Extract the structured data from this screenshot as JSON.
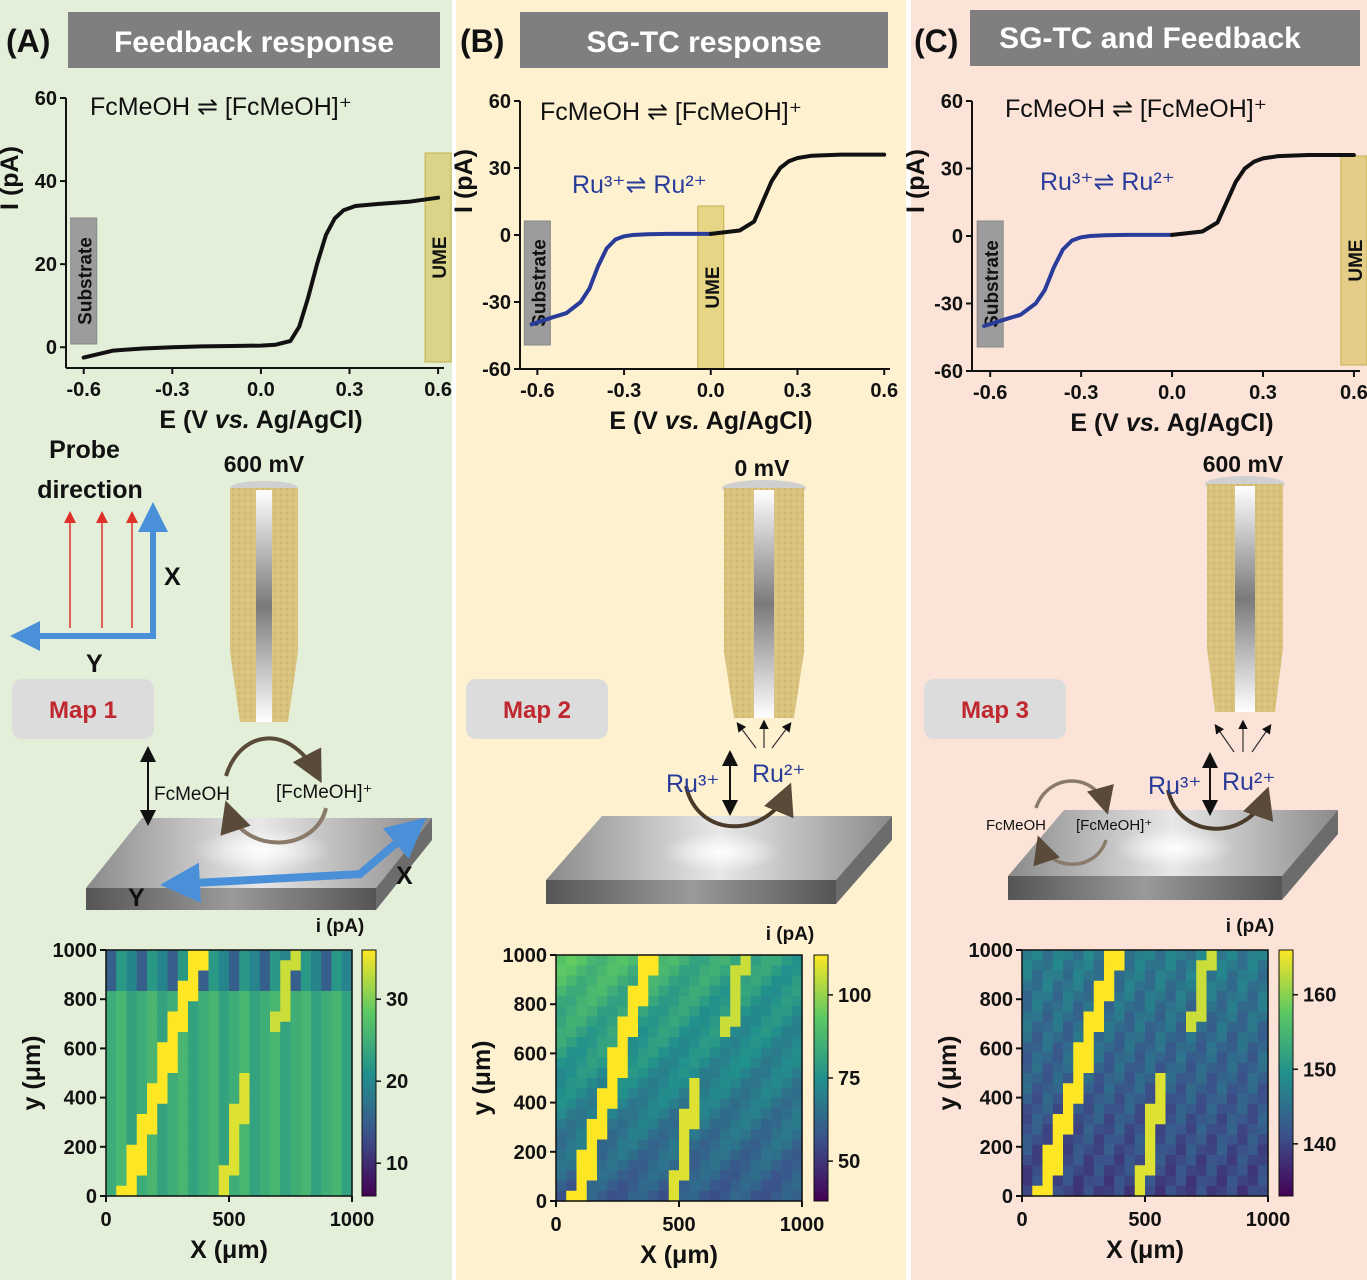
{
  "panels": [
    {
      "tag": "(A)",
      "header": "Feedback response",
      "bg": "#e3efd9",
      "equation": "FcMeOH ⇌ [FcMeOH]⁺",
      "ru_label": "",
      "substrate_label": "Substrate",
      "ume_label": "UME",
      "potential": "600 mV",
      "map_label": "Map 1",
      "surface_left": "FcMeOH",
      "surface_right": "[FcMeOH]⁺",
      "probe_title": "Probe\ndirection",
      "axis_x_letter": "X",
      "axis_y_letter": "Y",
      "cb_title": "i (pA)"
    },
    {
      "tag": "(B)",
      "header": "SG-TC response",
      "bg": "#fdf1d0",
      "equation": "FcMeOH ⇌ [FcMeOH]⁺",
      "ru_label": "Ru³⁺⇌ Ru²⁺",
      "substrate_label": "Substrate",
      "ume_label": "UME",
      "potential": "0 mV",
      "map_label": "Map 2",
      "surface_left": "Ru³⁺",
      "surface_right": "Ru²⁺",
      "cb_title": "i (pA)"
    },
    {
      "tag": "(C)",
      "header": "SG-TC and Feedback",
      "bg": "#fbe3d7",
      "equation": "FcMeOH ⇌ [FcMeOH]⁺",
      "ru_label": "Ru³⁺⇌ Ru²⁺",
      "substrate_label": "Substrate",
      "ume_label": "UME",
      "potential": "600 mV",
      "map_label": "Map 3",
      "surface_left": "Ru³⁺",
      "surface_right": "Ru²⁺",
      "cycle_left": "FcMeOH",
      "cycle_right": "[FcMeOH]⁺",
      "cb_title": "i (pA)"
    }
  ],
  "chart_data": [
    {
      "type": "line",
      "panel": "A",
      "xlabel": "E (V vs. Ag/AgCl)",
      "ylabel": "I (pA)",
      "xlim": [
        -0.66,
        0.62
      ],
      "ylim": [
        -5,
        60
      ],
      "xticks": [
        -0.6,
        -0.3,
        0.0,
        0.3,
        0.6
      ],
      "xtick_labels": [
        "-0.6",
        "-0.3",
        "0.0",
        "0.3",
        "0.6"
      ],
      "yticks": [
        0,
        20,
        40,
        60
      ],
      "ytick_labels": [
        "0",
        "20",
        "40",
        "60"
      ],
      "series": [
        {
          "color": "#111111",
          "x": [
            -0.6,
            -0.5,
            -0.4,
            -0.3,
            -0.2,
            -0.1,
            0.0,
            0.05,
            0.1,
            0.13,
            0.16,
            0.19,
            0.22,
            0.25,
            0.28,
            0.32,
            0.4,
            0.5,
            0.6
          ],
          "y": [
            -2.5,
            -0.8,
            -0.3,
            0,
            0.2,
            0.3,
            0.4,
            0.6,
            1.5,
            5,
            12,
            20,
            27,
            31,
            33,
            34,
            34.5,
            35,
            36
          ]
        }
      ],
      "bands": [
        {
          "label": "Substrate",
          "x": -0.6
        },
        {
          "label": "UME",
          "x": 0.6
        }
      ]
    },
    {
      "type": "line",
      "panel": "B",
      "xlabel": "E (V vs. Ag/AgCl)",
      "ylabel": "I (pA)",
      "xlim": [
        -0.66,
        0.62
      ],
      "ylim": [
        -60,
        60
      ],
      "xticks": [
        -0.6,
        -0.3,
        0.0,
        0.3,
        0.6
      ],
      "xtick_labels": [
        "-0.6",
        "-0.3",
        "0.0",
        "0.3",
        "0.6"
      ],
      "yticks": [
        -60,
        -30,
        0,
        30,
        60
      ],
      "ytick_labels": [
        "-60",
        "-30",
        "0",
        "30",
        "60"
      ],
      "series": [
        {
          "color": "#2a3c9a",
          "x": [
            -0.62,
            -0.55,
            -0.5,
            -0.45,
            -0.42,
            -0.39,
            -0.36,
            -0.33,
            -0.3,
            -0.27,
            -0.22,
            -0.15,
            0.0
          ],
          "y": [
            -40,
            -37,
            -35,
            -30,
            -24,
            -14,
            -6,
            -2,
            -0.6,
            0,
            0.3,
            0.5,
            0.5
          ]
        },
        {
          "color": "#111111",
          "x": [
            0.0,
            0.1,
            0.15,
            0.18,
            0.21,
            0.24,
            0.27,
            0.3,
            0.35,
            0.45,
            0.6
          ],
          "y": [
            0.5,
            2,
            6,
            15,
            24,
            30,
            33,
            34.5,
            35.5,
            36,
            36
          ]
        }
      ],
      "bands": [
        {
          "label": "Substrate",
          "x": -0.6
        },
        {
          "label": "UME",
          "x": 0.0
        }
      ]
    },
    {
      "type": "line",
      "panel": "C",
      "xlabel": "E (V vs. Ag/AgCl)",
      "ylabel": "I (pA)",
      "xlim": [
        -0.66,
        0.62
      ],
      "ylim": [
        -60,
        60
      ],
      "xticks": [
        -0.6,
        -0.3,
        0.0,
        0.3,
        0.6
      ],
      "xtick_labels": [
        "-0.6",
        "-0.3",
        "0.0",
        "0.3",
        "0.6"
      ],
      "yticks": [
        -60,
        -30,
        0,
        30,
        60
      ],
      "ytick_labels": [
        "-60",
        "-30",
        "0",
        "30",
        "60"
      ],
      "series": [
        {
          "color": "#2a3c9a",
          "x": [
            -0.62,
            -0.55,
            -0.5,
            -0.45,
            -0.42,
            -0.39,
            -0.36,
            -0.33,
            -0.3,
            -0.27,
            -0.22,
            -0.15,
            0.0
          ],
          "y": [
            -40,
            -37,
            -35,
            -30,
            -24,
            -14,
            -6,
            -2,
            -0.6,
            0,
            0.3,
            0.5,
            0.5
          ]
        },
        {
          "color": "#111111",
          "x": [
            0.0,
            0.1,
            0.15,
            0.18,
            0.21,
            0.24,
            0.27,
            0.3,
            0.35,
            0.45,
            0.6
          ],
          "y": [
            0.5,
            2,
            6,
            15,
            24,
            30,
            33,
            34.5,
            35.5,
            36,
            36
          ]
        }
      ],
      "bands": [
        {
          "label": "Substrate",
          "x": -0.6
        },
        {
          "label": "UME",
          "x": 0.6
        }
      ]
    },
    {
      "type": "heatmap",
      "panel": "A",
      "xlabel": "X (μm)",
      "ylabel": "y (μm)",
      "xlim": [
        0,
        1000
      ],
      "ylim": [
        0,
        1000
      ],
      "xtick_labels": [
        "0",
        "500",
        "1000"
      ],
      "ytick_labels": [
        "0",
        "200",
        "400",
        "600",
        "800",
        "1000"
      ],
      "colorbar_title": "i (pA)",
      "colorbar_range": [
        6,
        36
      ],
      "colorbar_ticks": [
        10,
        20,
        30
      ],
      "colorbar_tick_labels": [
        "10",
        "20",
        "30"
      ],
      "colormap": "viridis",
      "background_level": 0.6
    },
    {
      "type": "heatmap",
      "panel": "B",
      "xlabel": "X (μm)",
      "ylabel": "y (μm)",
      "xlim": [
        0,
        1000
      ],
      "ylim": [
        0,
        1000
      ],
      "xtick_labels": [
        "0",
        "500",
        "1000"
      ],
      "ytick_labels": [
        "0",
        "200",
        "400",
        "600",
        "800",
        "1000"
      ],
      "colorbar_title": "i (pA)",
      "colorbar_range": [
        38,
        112
      ],
      "colorbar_ticks": [
        50,
        75,
        100
      ],
      "colorbar_tick_labels": [
        "50",
        "75",
        "100"
      ],
      "colormap": "viridis",
      "background_level": 0.5
    },
    {
      "type": "heatmap",
      "panel": "C",
      "xlabel": "X (μm)",
      "ylabel": "y (μm)",
      "xlim": [
        0,
        1000
      ],
      "ylim": [
        0,
        1000
      ],
      "xtick_labels": [
        "0",
        "500",
        "1000"
      ],
      "ytick_labels": [
        "0",
        "200",
        "400",
        "600",
        "800",
        "1000"
      ],
      "colorbar_title": "i (pA)",
      "colorbar_range": [
        133,
        166
      ],
      "colorbar_ticks": [
        140,
        150,
        160
      ],
      "colorbar_tick_labels": [
        "140",
        "150",
        "160"
      ],
      "colormap": "viridis",
      "background_level": 0.35
    }
  ]
}
